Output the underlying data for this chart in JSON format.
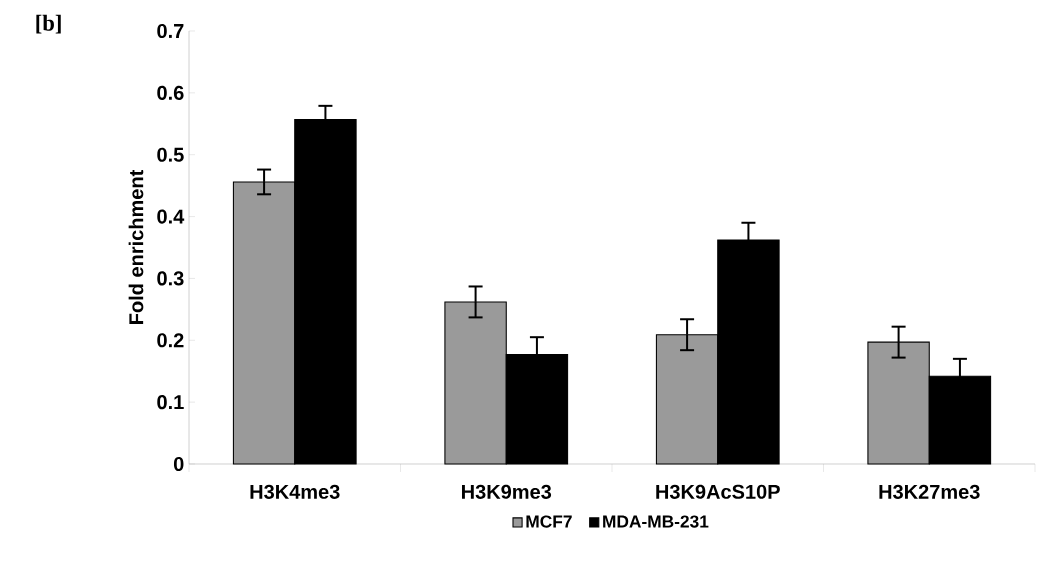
{
  "chart_data": {
    "type": "bar",
    "title": "[b]",
    "ylabel": "Fold enrichment",
    "categories": [
      "H3K4me3",
      "H3K9me3",
      "H3K9AcS10P",
      "H3K27me3"
    ],
    "series": [
      {
        "name": "MCF7",
        "color": "#9a9a9a",
        "values": [
          0.456,
          0.262,
          0.209,
          0.197
        ],
        "errors": [
          0.02,
          0.025,
          0.025,
          0.025
        ]
      },
      {
        "name": "MDA-MB-231",
        "color": "#000000",
        "values": [
          0.557,
          0.177,
          0.362,
          0.142
        ],
        "errors": [
          0.022,
          0.028,
          0.028,
          0.028
        ]
      }
    ],
    "ylim": [
      0,
      0.7
    ],
    "yticks": [
      0,
      0.1,
      0.2,
      0.3,
      0.4,
      0.5,
      0.6,
      0.7
    ],
    "legend": "bottom"
  }
}
